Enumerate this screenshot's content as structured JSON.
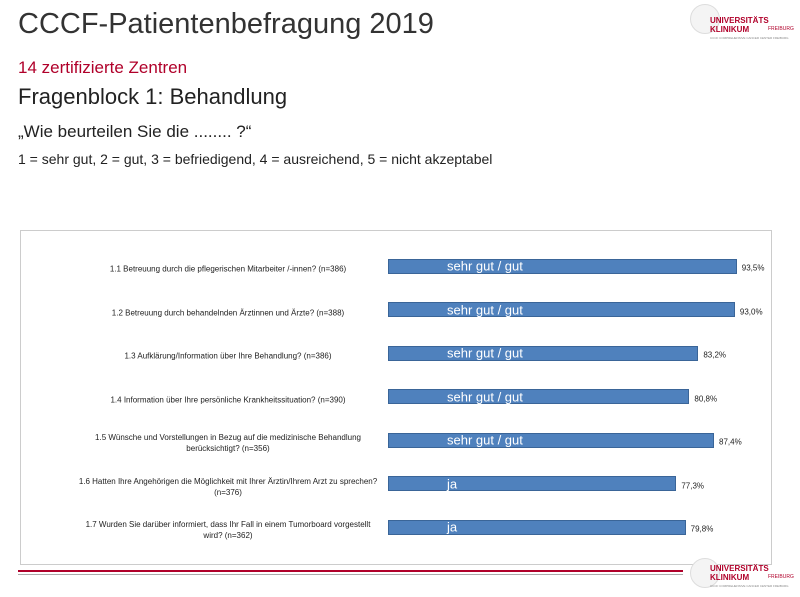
{
  "header": {
    "title": "CCCF-Patientenbefragung 2019",
    "subtitle": "14 zertifizierte Zentren",
    "section": "Fragenblock 1: Behandlung",
    "question": "„Wie beurteilen Sie die ........ ?“",
    "scale": "1 = sehr gut, 2 = gut, 3 = befriedigend, 4 = ausreichend, 5 = nicht akzeptabel"
  },
  "logo": {
    "line1": "UNIVERSITÄTS",
    "line2": "KLINIKUM",
    "line3": "FREIBURG",
    "line4": "CCCF COMPREHENSIVE CANCER CENTER FREIBURG"
  },
  "chart_data": {
    "type": "bar",
    "orientation": "horizontal",
    "color": "#4f81bd",
    "categories": [
      "1.1 Betreuung durch die pflegerischen Mitarbeiter /-innen? (n=386)",
      "1.2 Betreuung durch behandelnden Ärztinnen und Ärzte? (n=388)",
      "1.3 Aufklärung/Information über Ihre Behandlung? (n=386)",
      "1.4 Information über Ihre persönliche Krankheitssituation? (n=390)",
      "1.5 Wünsche und Vorstellungen in Bezug auf die medizinische Behandlung berücksichtigt? (n=356)",
      "1.6 Hatten Ihre Angehörigen die Möglichkeit mit Ihrer Ärztin/Ihrem Arzt zu sprechen? (n=376)",
      "1.7 Wurden Sie darüber informiert, dass Ihr Fall in einem Tumorboard vorgestellt wird? (n=362)"
    ],
    "values": [
      93.5,
      93.0,
      83.2,
      80.8,
      87.4,
      77.3,
      79.8
    ],
    "value_labels": [
      "93,5%",
      "93,0%",
      "83,2%",
      "80,8%",
      "87,4%",
      "77,3%",
      "79,8%"
    ],
    "bar_labels": [
      "sehr gut / gut",
      "sehr gut / gut",
      "sehr gut / gut",
      "sehr gut / gut",
      "sehr gut / gut",
      "ja",
      "ja"
    ],
    "xlim": [
      0,
      100
    ]
  }
}
